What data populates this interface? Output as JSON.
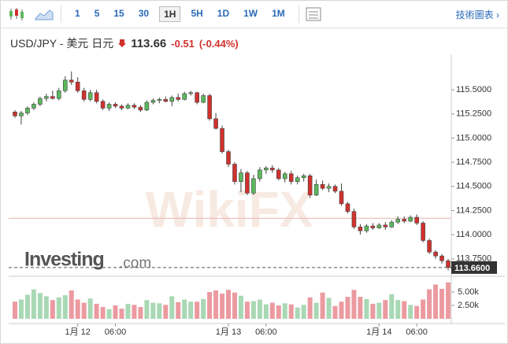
{
  "toolbar": {
    "intervals": [
      "1",
      "5",
      "15",
      "30",
      "1H",
      "5H",
      "1D",
      "1W",
      "1M"
    ],
    "selected": "1H",
    "advanced_link": "技術圖表 ›"
  },
  "header": {
    "pair": "USD/JPY - 美元 日元",
    "price": "113.66",
    "change": "-0.51",
    "change_percent": "(-0.44%)"
  },
  "chart_data": {
    "type": "candlestick",
    "categories": [
      null,
      null,
      null,
      null,
      null,
      null,
      null,
      null,
      null,
      null,
      "1月 12",
      null,
      null,
      null,
      null,
      null,
      "06:00",
      null,
      null,
      null,
      null,
      null,
      null,
      null,
      null,
      null,
      null,
      null,
      null,
      null,
      null,
      null,
      null,
      null,
      "1月 13",
      null,
      null,
      null,
      null,
      null,
      "06:00",
      null,
      null,
      null,
      null,
      null,
      null,
      null,
      null,
      null,
      null,
      null,
      null,
      null,
      null,
      null,
      null,
      null,
      "1月 14",
      null,
      null,
      null,
      null,
      null,
      "06:00",
      null,
      null,
      null,
      null,
      null
    ],
    "ohlc": [
      [
        115.27,
        115.29,
        115.21,
        115.23
      ],
      [
        115.23,
        115.28,
        115.14,
        115.26
      ],
      [
        115.26,
        115.33,
        115.24,
        115.31
      ],
      [
        115.31,
        115.37,
        115.29,
        115.35
      ],
      [
        115.35,
        115.43,
        115.33,
        115.41
      ],
      [
        115.41,
        115.46,
        115.38,
        115.43
      ],
      [
        115.43,
        115.49,
        115.4,
        115.41
      ],
      [
        115.41,
        115.52,
        115.39,
        115.49
      ],
      [
        115.49,
        115.64,
        115.47,
        115.6
      ],
      [
        115.6,
        115.69,
        115.55,
        115.58
      ],
      [
        115.58,
        115.63,
        115.47,
        115.49
      ],
      [
        115.49,
        115.52,
        115.38,
        115.4
      ],
      [
        115.4,
        115.5,
        115.38,
        115.47
      ],
      [
        115.47,
        115.5,
        115.36,
        115.38
      ],
      [
        115.38,
        115.4,
        115.29,
        115.31
      ],
      [
        115.31,
        115.37,
        115.28,
        115.35
      ],
      [
        115.35,
        115.37,
        115.31,
        115.33
      ],
      [
        115.33,
        115.35,
        115.29,
        115.31
      ],
      [
        115.31,
        115.36,
        115.3,
        115.34
      ],
      [
        115.34,
        115.36,
        115.3,
        115.32
      ],
      [
        115.32,
        115.34,
        115.27,
        115.29
      ],
      [
        115.29,
        115.39,
        115.28,
        115.37
      ],
      [
        115.37,
        115.41,
        115.35,
        115.39
      ],
      [
        115.39,
        115.42,
        115.36,
        115.4
      ],
      [
        115.4,
        115.43,
        115.37,
        115.38
      ],
      [
        115.38,
        115.44,
        115.33,
        115.42
      ],
      [
        115.42,
        115.46,
        115.38,
        115.4
      ],
      [
        115.4,
        115.48,
        115.39,
        115.46
      ],
      [
        115.46,
        115.49,
        115.44,
        115.47
      ],
      [
        115.47,
        115.48,
        115.35,
        115.37
      ],
      [
        115.37,
        115.46,
        115.36,
        115.44
      ],
      [
        115.44,
        115.46,
        115.18,
        115.2
      ],
      [
        115.2,
        115.26,
        115.09,
        115.1
      ],
      [
        115.1,
        115.13,
        114.84,
        114.86
      ],
      [
        114.86,
        114.88,
        114.7,
        114.73
      ],
      [
        114.73,
        114.75,
        114.52,
        114.55
      ],
      [
        114.55,
        114.68,
        114.44,
        114.64
      ],
      [
        114.64,
        114.66,
        114.41,
        114.43
      ],
      [
        114.43,
        114.62,
        114.41,
        114.58
      ],
      [
        114.58,
        114.7,
        114.55,
        114.67
      ],
      [
        114.67,
        114.71,
        114.63,
        114.69
      ],
      [
        114.69,
        114.72,
        114.64,
        114.67
      ],
      [
        114.67,
        114.69,
        114.56,
        114.58
      ],
      [
        114.58,
        114.65,
        114.54,
        114.63
      ],
      [
        114.63,
        114.66,
        114.52,
        114.55
      ],
      [
        114.55,
        114.61,
        114.52,
        114.59
      ],
      [
        114.59,
        114.63,
        114.55,
        114.61
      ],
      [
        114.61,
        114.63,
        114.38,
        114.41
      ],
      [
        114.41,
        114.57,
        114.4,
        114.52
      ],
      [
        114.52,
        114.56,
        114.46,
        114.48
      ],
      [
        114.48,
        114.53,
        114.44,
        114.5
      ],
      [
        114.5,
        114.52,
        114.43,
        114.45
      ],
      [
        114.45,
        114.53,
        114.3,
        114.32
      ],
      [
        114.32,
        114.34,
        114.22,
        114.24
      ],
      [
        114.24,
        114.27,
        114.06,
        114.08
      ],
      [
        114.08,
        114.11,
        114.0,
        114.04
      ],
      [
        114.04,
        114.11,
        114.02,
        114.09
      ],
      [
        114.09,
        114.12,
        114.05,
        114.07
      ],
      [
        114.07,
        114.12,
        114.06,
        114.1
      ],
      [
        114.1,
        114.13,
        114.05,
        114.08
      ],
      [
        114.08,
        114.15,
        114.07,
        114.13
      ],
      [
        114.13,
        114.19,
        114.11,
        114.16
      ],
      [
        114.16,
        114.19,
        114.12,
        114.14
      ],
      [
        114.14,
        114.2,
        114.13,
        114.18
      ],
      [
        114.18,
        114.21,
        114.1,
        114.12
      ],
      [
        114.12,
        114.14,
        113.92,
        113.94
      ],
      [
        113.94,
        113.96,
        113.8,
        113.82
      ],
      [
        113.82,
        113.84,
        113.75,
        113.78
      ],
      [
        113.78,
        113.8,
        113.7,
        113.73
      ],
      [
        113.73,
        113.75,
        113.63,
        113.66
      ]
    ],
    "volume": [
      3200,
      3600,
      4500,
      5500,
      4800,
      4200,
      3500,
      4000,
      4400,
      5300,
      3600,
      3000,
      3800,
      2800,
      2200,
      1800,
      2500,
      1900,
      2800,
      2600,
      2200,
      3500,
      3000,
      2900,
      2600,
      4200,
      3100,
      3600,
      3200,
      3200,
      3700,
      5000,
      5300,
      4700,
      5400,
      4900,
      4300,
      3200,
      3300,
      3600,
      2700,
      3000,
      2500,
      2900,
      2700,
      2100,
      2600,
      4000,
      3000,
      4900,
      3900,
      2400,
      3200,
      4100,
      5400,
      4100,
      3700,
      2800,
      3000,
      3500,
      4600,
      3500,
      3300,
      2600,
      2400,
      3600,
      5500,
      6400,
      5600,
      6800
    ],
    "ylim": [
      113.61,
      115.81
    ],
    "yticks": [
      {
        "value": 115.5,
        "label": "115.5000"
      },
      {
        "value": 115.25,
        "label": "115.2500"
      },
      {
        "value": 115.0,
        "label": "115.0000"
      },
      {
        "value": 114.75,
        "label": "114.7500"
      },
      {
        "value": 114.5,
        "label": "114.5000"
      },
      {
        "value": 114.25,
        "label": "114.2500"
      },
      {
        "value": 114.0,
        "label": "114.0000"
      },
      {
        "value": 113.75,
        "label": "113.7500"
      }
    ],
    "volume_ylim": [
      0,
      7200
    ],
    "volume_yticks": [
      {
        "value": 5000,
        "label": "5.00k"
      },
      {
        "value": 2500,
        "label": "2.50k"
      }
    ],
    "prev_close": 114.17,
    "last_price": {
      "value": 113.66,
      "label": "113.6600"
    },
    "up_color": "#5cb85c",
    "down_color": "#d0312d",
    "up_volume_color": "#a8d8b4",
    "down_volume_color": "#eb9aa0",
    "watermarks": {
      "brand": "Investing",
      "suffix": ".com",
      "partner": "WikiFX"
    }
  }
}
